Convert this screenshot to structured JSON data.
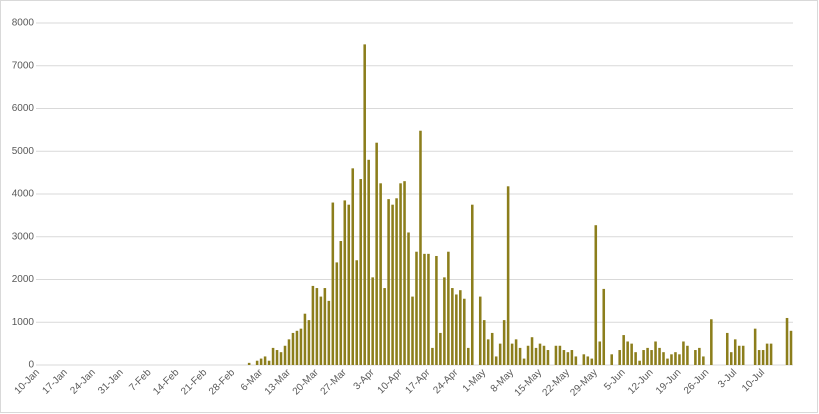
{
  "chart_data": {
    "type": "bar",
    "color": "#8c7e1c",
    "grid": true,
    "ylim": [
      0,
      8000
    ],
    "yticks": [
      0,
      1000,
      2000,
      3000,
      4000,
      5000,
      6000,
      7000,
      8000
    ],
    "categories": [
      "10-Jan",
      null,
      null,
      null,
      null,
      null,
      null,
      "17-Jan",
      null,
      null,
      null,
      null,
      null,
      null,
      "24-Jan",
      null,
      null,
      null,
      null,
      null,
      null,
      "31-Jan",
      null,
      null,
      null,
      null,
      null,
      null,
      "7-Feb",
      null,
      null,
      null,
      null,
      null,
      null,
      "14-Feb",
      null,
      null,
      null,
      null,
      null,
      null,
      "21-Feb",
      null,
      null,
      null,
      null,
      null,
      null,
      "28-Feb",
      null,
      null,
      null,
      null,
      null,
      null,
      "6-Mar",
      null,
      null,
      null,
      null,
      null,
      null,
      "13-Mar",
      null,
      null,
      null,
      null,
      null,
      null,
      "20-Mar",
      null,
      null,
      null,
      null,
      null,
      null,
      "27-Mar",
      null,
      null,
      null,
      null,
      null,
      null,
      "3-Apr",
      null,
      null,
      null,
      null,
      null,
      null,
      "10-Apr",
      null,
      null,
      null,
      null,
      null,
      null,
      "17-Apr",
      null,
      null,
      null,
      null,
      null,
      null,
      "24-Apr",
      null,
      null,
      null,
      null,
      null,
      null,
      "1-May",
      null,
      null,
      null,
      null,
      null,
      null,
      "8-May",
      null,
      null,
      null,
      null,
      null,
      null,
      "15-May",
      null,
      null,
      null,
      null,
      null,
      null,
      "22-May",
      null,
      null,
      null,
      null,
      null,
      null,
      "29-May",
      null,
      null,
      null,
      null,
      null,
      null,
      "5-Jun",
      null,
      null,
      null,
      null,
      null,
      null,
      "12-Jun",
      null,
      null,
      null,
      null,
      null,
      null,
      "19-Jun",
      null,
      null,
      null,
      null,
      null,
      null,
      "26-Jun",
      null,
      null,
      null,
      null,
      null,
      null,
      "3-Jul",
      null,
      null,
      null,
      null,
      null,
      null,
      "10-Jul",
      null,
      null,
      null,
      null,
      null,
      null,
      null
    ],
    "values": [
      0,
      0,
      0,
      0,
      0,
      0,
      0,
      0,
      0,
      0,
      0,
      0,
      0,
      0,
      0,
      0,
      0,
      0,
      0,
      0,
      0,
      0,
      0,
      0,
      0,
      0,
      0,
      0,
      0,
      0,
      0,
      0,
      0,
      0,
      0,
      0,
      0,
      0,
      0,
      0,
      0,
      0,
      0,
      0,
      0,
      0,
      0,
      0,
      0,
      0,
      0,
      0,
      0,
      50,
      0,
      100,
      150,
      200,
      100,
      400,
      350,
      300,
      450,
      600,
      750,
      800,
      850,
      1200,
      1050,
      1850,
      1800,
      1600,
      1800,
      1500,
      3800,
      2400,
      2900,
      3850,
      3750,
      4600,
      2450,
      4350,
      7500,
      4800,
      2050,
      5200,
      4250,
      1800,
      3880,
      3750,
      3900,
      4250,
      4300,
      3100,
      1600,
      2650,
      5480,
      2600,
      2600,
      400,
      2550,
      750,
      2050,
      2650,
      1800,
      1650,
      1750,
      1550,
      400,
      3750,
      0,
      1600,
      1050,
      600,
      750,
      200,
      500,
      1050,
      4180,
      500,
      600,
      400,
      150,
      450,
      650,
      400,
      500,
      450,
      350,
      0,
      450,
      450,
      350,
      300,
      350,
      200,
      0,
      250,
      200,
      150,
      3270,
      550,
      1780,
      0,
      250,
      0,
      350,
      700,
      550,
      500,
      300,
      100,
      350,
      400,
      350,
      550,
      400,
      300,
      150,
      250,
      300,
      250,
      550,
      450,
      0,
      350,
      400,
      200,
      0,
      1070,
      0,
      0,
      0,
      750,
      300,
      600,
      450,
      450,
      0,
      0,
      850,
      350,
      350,
      500,
      500,
      0,
      0,
      0,
      1100,
      800
    ]
  }
}
